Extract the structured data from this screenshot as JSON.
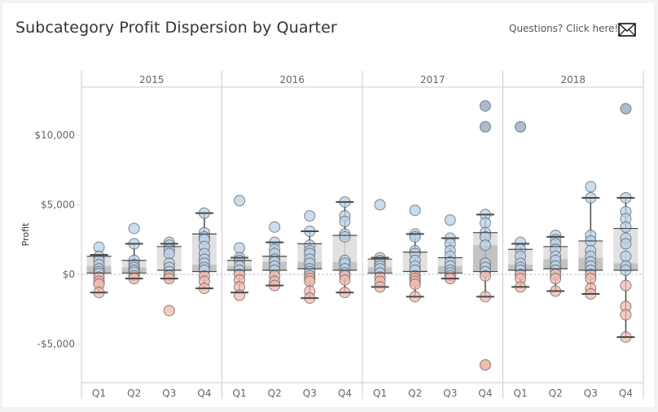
{
  "header": {
    "title": "Subcategory Profit Dispersion by Quarter",
    "questions_link": "Questions? Click here!",
    "mail_icon": "envelope-icon"
  },
  "colors": {
    "positive_light": "#b8d2e8",
    "positive_dark": "#8ea5c0",
    "negative": "#f4b8ad",
    "negative_dark": "#f1a196",
    "box_upper": "#dcdcdc",
    "box_lower": "#b8b8b8",
    "whisker": "#4a4a4a",
    "grid": "#cccccc"
  },
  "chart_data": {
    "type": "scatter",
    "subtype": "box-and-whisker with dot strip",
    "title": "Subcategory Profit Dispersion by Quarter",
    "ylabel": "Profit",
    "xlabel": "",
    "ylim": [
      -7800,
      13200
    ],
    "yticks": [
      {
        "value": 10000,
        "label": "$10,000"
      },
      {
        "value": 5000,
        "label": "$5,000"
      },
      {
        "value": 0,
        "label": "$0"
      },
      {
        "value": -5000,
        "label": "-$5,000"
      }
    ],
    "zero_line": "dashed",
    "years": [
      "2015",
      "2016",
      "2017",
      "2018"
    ],
    "quarters": [
      "Q1",
      "Q2",
      "Q3",
      "Q4"
    ],
    "groups": [
      {
        "year": "2015",
        "quarter": "Q1",
        "whisker_low": -1300,
        "q1": 100,
        "median": 600,
        "q3": 1300,
        "whisker_high": 1400,
        "points": [
          1950,
          1300,
          1000,
          700,
          400,
          200,
          50,
          -200,
          -500,
          -700,
          -1300
        ]
      },
      {
        "year": "2015",
        "quarter": "Q2",
        "whisker_low": -300,
        "q1": 100,
        "median": 500,
        "q3": 1000,
        "whisker_high": 2200,
        "points": [
          3300,
          2200,
          1000,
          700,
          500,
          300,
          150,
          -100,
          -300
        ]
      },
      {
        "year": "2015",
        "quarter": "Q3",
        "whisker_low": -300,
        "q1": 300,
        "median": 300,
        "q3": 2000,
        "whisker_high": 2200,
        "points": [
          2300,
          2100,
          1800,
          1500,
          800,
          500,
          200,
          -100,
          -300,
          -2600
        ]
      },
      {
        "year": "2015",
        "quarter": "Q4",
        "whisker_low": -1000,
        "q1": 200,
        "median": 700,
        "q3": 2900,
        "whisker_high": 4400,
        "points": [
          4400,
          3000,
          2700,
          2500,
          2000,
          1500,
          1100,
          800,
          500,
          300,
          -100,
          -500,
          -1000
        ]
      },
      {
        "year": "2016",
        "quarter": "Q1",
        "whisker_low": -1300,
        "q1": 300,
        "median": 600,
        "q3": 1000,
        "whisker_high": 1200,
        "points": [
          5300,
          1900,
          1200,
          1000,
          600,
          300,
          0,
          -400,
          -900,
          -1500
        ]
      },
      {
        "year": "2016",
        "quarter": "Q2",
        "whisker_low": -800,
        "q1": 300,
        "median": 900,
        "q3": 1300,
        "whisker_high": 2300,
        "points": [
          3400,
          2300,
          1800,
          1500,
          1100,
          900,
          600,
          300,
          -100,
          -500,
          -800
        ]
      },
      {
        "year": "2016",
        "quarter": "Q3",
        "whisker_low": -1700,
        "q1": 400,
        "median": 900,
        "q3": 2200,
        "whisker_high": 3100,
        "points": [
          4200,
          3100,
          2100,
          1700,
          1500,
          1100,
          800,
          400,
          200,
          -100,
          -300,
          -500,
          -1200,
          -1700
        ]
      },
      {
        "year": "2016",
        "quarter": "Q4",
        "whisker_low": -1300,
        "q1": 300,
        "median": 900,
        "q3": 2800,
        "whisker_high": 5200,
        "points": [
          5200,
          4200,
          3800,
          2900,
          2700,
          1000,
          800,
          400,
          100,
          -100,
          -400,
          -1300
        ]
      },
      {
        "year": "2017",
        "quarter": "Q1",
        "whisker_low": -900,
        "q1": 100,
        "median": 500,
        "q3": 1100,
        "whisker_high": 1200,
        "points": [
          5000,
          1200,
          1000,
          800,
          600,
          400,
          100,
          -200,
          -500,
          -900
        ]
      },
      {
        "year": "2017",
        "quarter": "Q2",
        "whisker_low": -1600,
        "q1": 200,
        "median": 300,
        "q3": 1600,
        "whisker_high": 2900,
        "points": [
          4600,
          2900,
          2700,
          1700,
          1500,
          1000,
          600,
          300,
          -100,
          -300,
          -500,
          -700,
          -1600
        ]
      },
      {
        "year": "2017",
        "quarter": "Q3",
        "whisker_low": -300,
        "q1": 100,
        "median": 600,
        "q3": 1200,
        "whisker_high": 2600,
        "points": [
          3900,
          2600,
          2200,
          1700,
          1300,
          900,
          600,
          300,
          100,
          -100,
          -300
        ]
      },
      {
        "year": "2017",
        "quarter": "Q4",
        "whisker_low": -1600,
        "q1": 200,
        "median": 2100,
        "q3": 3000,
        "whisker_high": 4300,
        "points": [
          12100,
          10600,
          4300,
          3700,
          3000,
          2700,
          2100,
          800,
          500,
          200,
          -100,
          -1600,
          -6500
        ]
      },
      {
        "year": "2018",
        "quarter": "Q1",
        "whisker_low": -900,
        "q1": 300,
        "median": 700,
        "q3": 1800,
        "whisker_high": 2200,
        "points": [
          10600,
          2300,
          1800,
          1300,
          800,
          500,
          300,
          0,
          -300,
          -900
        ]
      },
      {
        "year": "2018",
        "quarter": "Q2",
        "whisker_low": -1200,
        "q1": 400,
        "median": 1100,
        "q3": 2000,
        "whisker_high": 2700,
        "points": [
          2800,
          2500,
          2200,
          1800,
          1300,
          1000,
          600,
          300,
          0,
          -300,
          -1200
        ]
      },
      {
        "year": "2018",
        "quarter": "Q3",
        "whisker_low": -1400,
        "q1": 300,
        "median": 1200,
        "q3": 2400,
        "whisker_high": 5500,
        "points": [
          6300,
          5500,
          2800,
          2400,
          1700,
          1300,
          900,
          600,
          300,
          0,
          -300,
          -1000,
          -1400
        ]
      },
      {
        "year": "2018",
        "quarter": "Q4",
        "whisker_low": -4500,
        "q1": 300,
        "median": 800,
        "q3": 3300,
        "whisker_high": 5500,
        "points": [
          11900,
          5500,
          4500,
          4000,
          3400,
          2600,
          2200,
          1300,
          600,
          300,
          -800,
          -2300,
          -2900,
          -4500
        ]
      }
    ]
  }
}
